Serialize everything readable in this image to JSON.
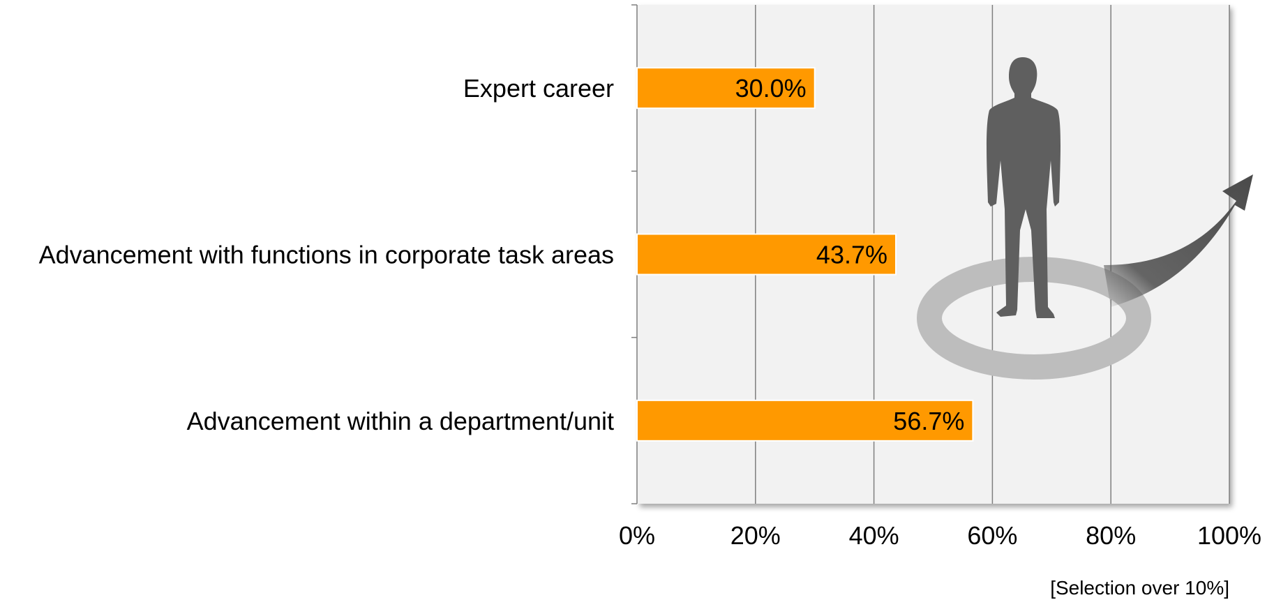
{
  "chart_data": {
    "type": "bar",
    "orientation": "horizontal",
    "categories": [
      "Expert career",
      "Advancement with functions in corporate task areas",
      "Advancement within a department/unit"
    ],
    "values": [
      30.0,
      43.7,
      56.7
    ],
    "value_labels": [
      "30.0%",
      "43.7%",
      "56.7%"
    ],
    "xlim": [
      0,
      100
    ],
    "x_ticks": [
      0,
      20,
      40,
      60,
      80,
      100
    ],
    "x_tick_labels": [
      "0%",
      "20%",
      "40%",
      "60%",
      "80%",
      "100%"
    ],
    "note": "[Selection over 10%]",
    "grid": "vertical",
    "legend": "none",
    "bar_color": "#FF9900",
    "plot_background": "#F2F2F2",
    "decoration": "person-silhouette-with-arrow"
  }
}
